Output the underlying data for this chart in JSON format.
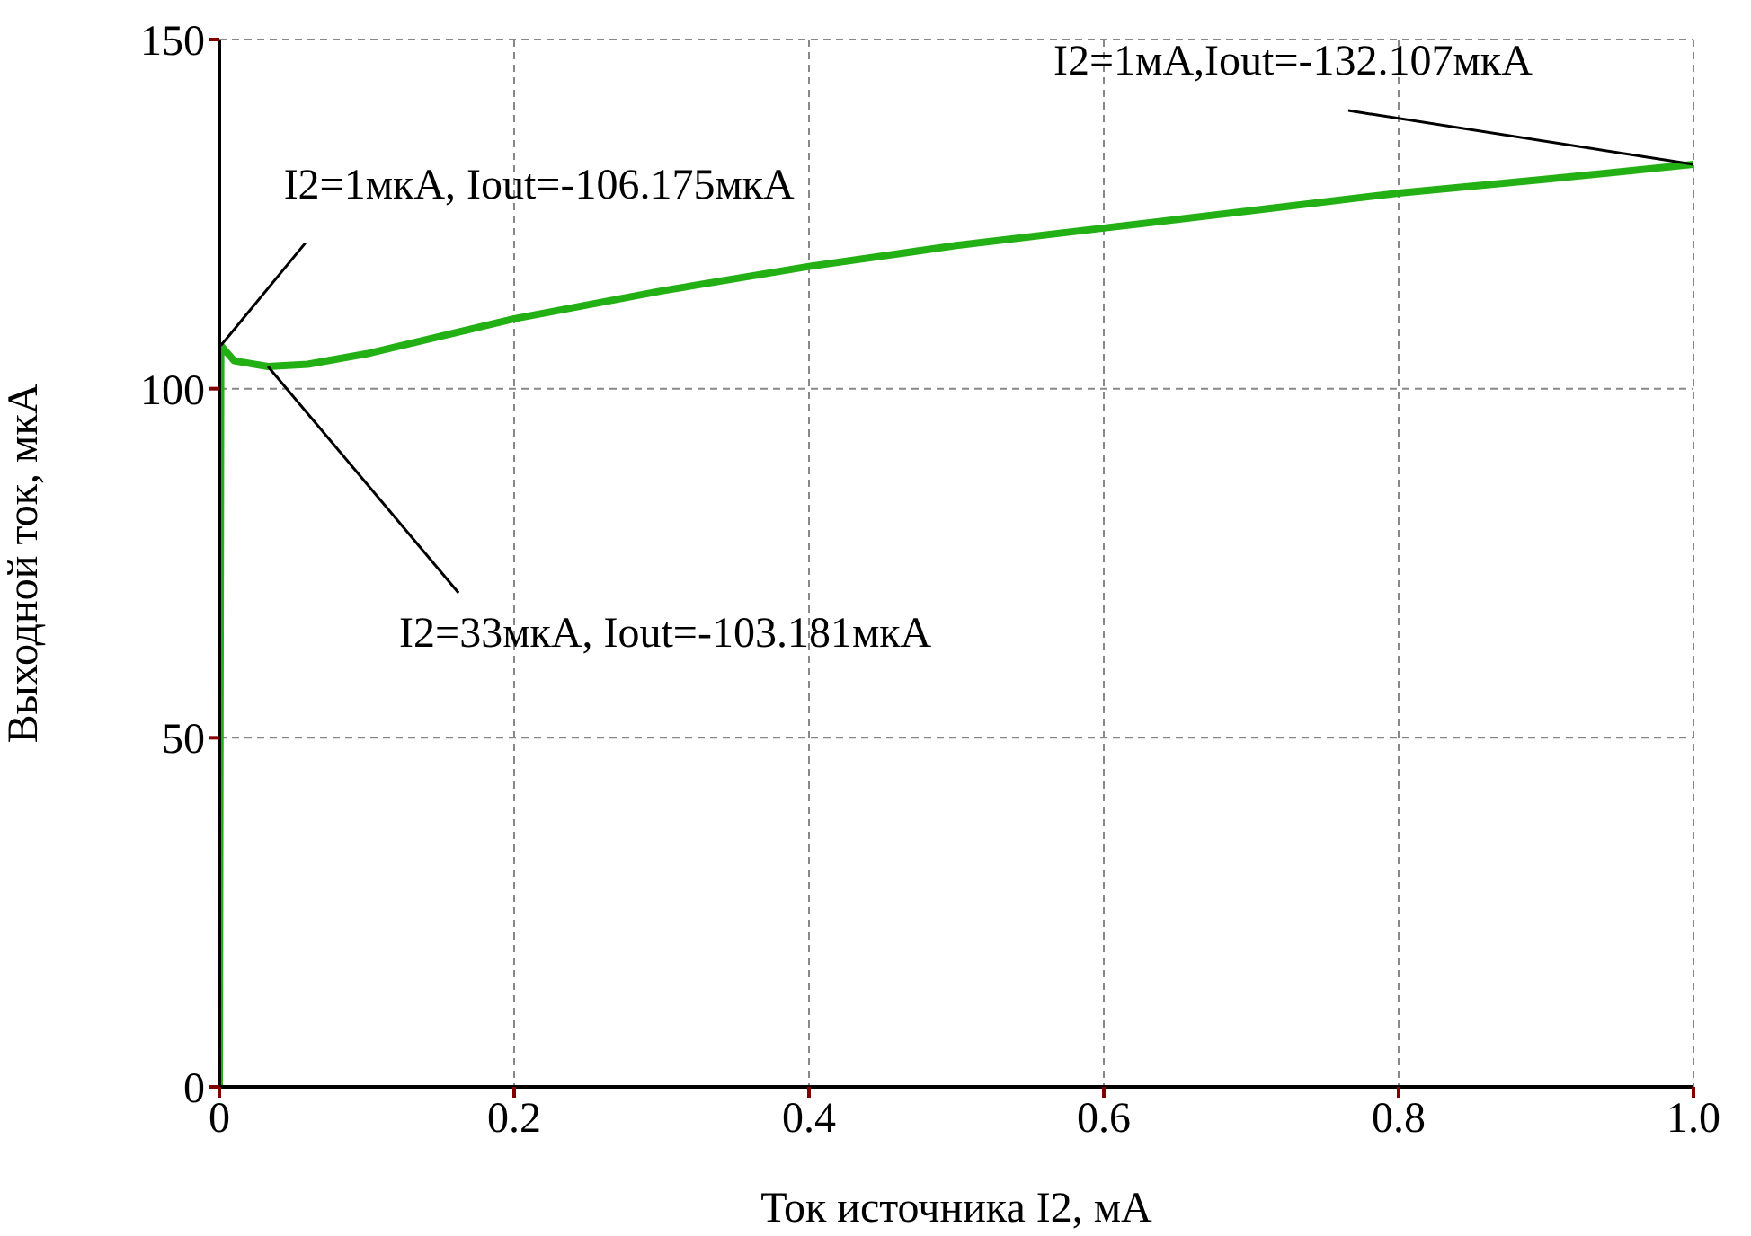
{
  "chart_data": {
    "type": "line",
    "xlabel": "Ток источника I2, мА",
    "ylabel": "Выходной ток, мкА",
    "x": [
      0,
      0.001,
      0.01,
      0.033,
      0.06,
      0.1,
      0.15,
      0.2,
      0.3,
      0.4,
      0.5,
      0.6,
      0.7,
      0.8,
      0.9,
      1
    ],
    "series": [
      {
        "color": "#22b014",
        "values": [
          0,
          106.175,
          104,
          103.181,
          103.5,
          105,
          107.5,
          110,
          114,
          117.5,
          120.5,
          123,
          125.5,
          128,
          130,
          132.107
        ]
      }
    ],
    "xlim": [
      0,
      1
    ],
    "xticks": [
      0,
      0.2,
      0.4,
      0.6,
      0.8,
      {
        "value": 1,
        "label": "1.0"
      }
    ],
    "ylim": [
      0,
      150
    ],
    "yticks": [
      0,
      50,
      100,
      150
    ],
    "grid": true,
    "marker": "none",
    "line_style": "solid",
    "annotations": [
      {
        "text": "I2=1мкА, Iout=-106.175мкА",
        "x": 0.001,
        "y": 106.175
      },
      {
        "text": "I2=33мкА, Iout=-103.181мкА",
        "x": 0.033,
        "y": 103.181
      },
      {
        "text": "I2=1мА,Iout=-132.107мкА",
        "x": 1,
        "y": 132.107
      }
    ]
  }
}
